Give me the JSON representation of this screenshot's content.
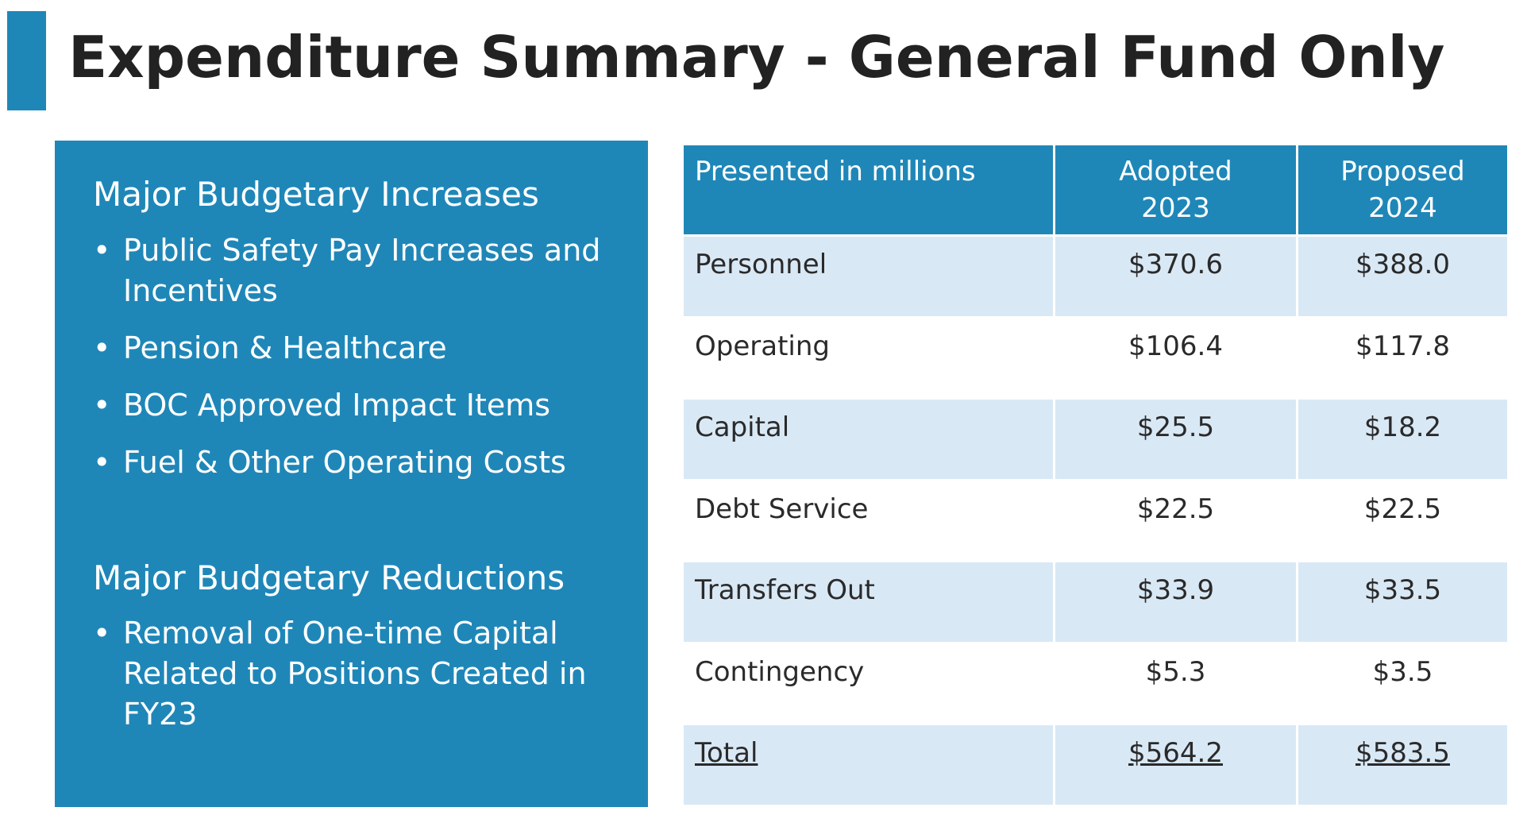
{
  "header": {
    "title": "Expenditure Summary - General Fund Only"
  },
  "panel": {
    "increases_heading": "Major Budgetary Increases",
    "increases": [
      "Public Safety Pay Increases and Incentives",
      "Pension & Healthcare",
      "BOC Approved Impact Items",
      "Fuel & Other Operating Costs"
    ],
    "reductions_heading": "Major Budgetary Reductions",
    "reductions": [
      "Removal of One-time Capital Related to Positions Created in FY23"
    ]
  },
  "table": {
    "headers": {
      "label": "Presented in millions",
      "adopted_line1": "Adopted",
      "adopted_line2": "2023",
      "proposed_line1": "Proposed",
      "proposed_line2": "2024"
    },
    "rows": [
      {
        "label": "Personnel",
        "adopted": "$370.6",
        "proposed": "$388.0"
      },
      {
        "label": "Operating",
        "adopted": "$106.4",
        "proposed": "$117.8"
      },
      {
        "label": "Capital",
        "adopted": "$25.5",
        "proposed": "$18.2"
      },
      {
        "label": "Debt Service",
        "adopted": "$22.5",
        "proposed": "$22.5"
      },
      {
        "label": "Transfers Out",
        "adopted": "$33.9",
        "proposed": "$33.5"
      },
      {
        "label": "Contingency",
        "adopted": "$5.3",
        "proposed": "$3.5"
      }
    ],
    "total": {
      "label": "Total",
      "adopted": "$564.2",
      "proposed": "$583.5"
    }
  },
  "colors": {
    "accent": "#1f87b8",
    "row_band": "#d9e8f5",
    "title_text": "#222222"
  }
}
